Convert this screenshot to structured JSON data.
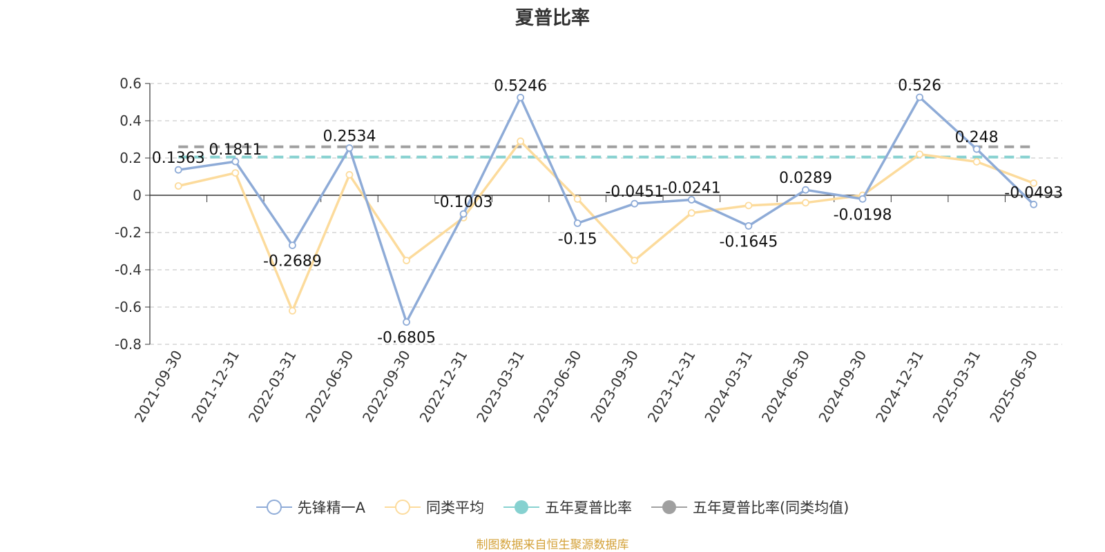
{
  "title": "夏普比率",
  "source": "制图数据来自恒生聚源数据库",
  "chart_data": {
    "type": "line",
    "title": "夏普比率",
    "categories": [
      "2021-09-30",
      "2021-12-31",
      "2022-03-31",
      "2022-06-30",
      "2022-09-30",
      "2022-12-31",
      "2023-03-31",
      "2023-06-30",
      "2023-09-30",
      "2023-12-31",
      "2024-03-31",
      "2024-06-30",
      "2024-09-30",
      "2024-12-31",
      "2025-03-31",
      "2025-06-30"
    ],
    "ylim": [
      -0.8,
      0.6
    ],
    "yticks": [
      "0.6",
      "0.4",
      "0.2",
      "0",
      "-0.2",
      "-0.4",
      "-0.6",
      "-0.8"
    ],
    "grid": true,
    "legend_position": "bottom",
    "series": [
      {
        "name": "先锋精一A",
        "color": "#8eabd7",
        "values": [
          0.1363,
          0.1811,
          -0.2689,
          0.2534,
          -0.6805,
          -0.1003,
          0.5246,
          -0.15,
          -0.0451,
          -0.0241,
          -0.1645,
          0.0289,
          -0.0198,
          0.526,
          0.248,
          -0.0493
        ],
        "labels": [
          "0.1363",
          "0.1811",
          "-0.2689",
          "0.2534",
          "-0.6805",
          "-0.1003",
          "0.5246",
          "-0.15",
          "-0.0451",
          "-0.0241",
          "-0.1645",
          "0.0289",
          "-0.0198",
          "0.526",
          "0.248",
          "-0.0493"
        ]
      },
      {
        "name": "同类平均",
        "color": "#fcdb9c",
        "values": [
          0.05,
          0.12,
          -0.62,
          0.11,
          -0.35,
          -0.12,
          0.29,
          -0.02,
          -0.35,
          -0.095,
          -0.055,
          -0.04,
          0.0,
          0.22,
          0.18,
          0.065
        ]
      },
      {
        "name": "五年夏普比率",
        "color": "#86d1d0",
        "value": 0.205
      },
      {
        "name": "五年夏普比率(同类均值)",
        "color": "#a0a0a0",
        "value": 0.26
      }
    ]
  }
}
